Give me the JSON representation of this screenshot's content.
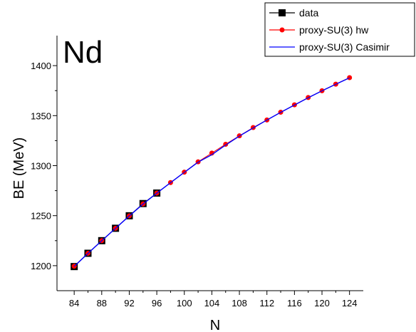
{
  "chart_data": {
    "type": "line",
    "annotation": "Nd",
    "title": "",
    "xlabel": "N",
    "ylabel": "BE (MeV)",
    "xlim": [
      81.5,
      126
    ],
    "ylim": [
      1175,
      1430
    ],
    "x_ticks": [
      84,
      88,
      92,
      96,
      100,
      104,
      108,
      112,
      116,
      120,
      124
    ],
    "x_minor_ticks": [
      86,
      90,
      94,
      98,
      102,
      106,
      110,
      114,
      118,
      122
    ],
    "y_ticks": [
      1200,
      1250,
      1300,
      1350,
      1400
    ],
    "y_minor_ticks": [
      1225,
      1275,
      1325,
      1375
    ],
    "grid": false,
    "legend_position": "top-right",
    "series": [
      {
        "name": "data",
        "style": "square-line",
        "color": "#000000",
        "x": [
          84,
          86,
          88,
          90,
          92,
          94,
          96
        ],
        "y": [
          1199.1,
          1212.4,
          1225.0,
          1237.4,
          1249.9,
          1262.1,
          1272.6
        ]
      },
      {
        "name": "proxy-SU(3) hw",
        "style": "circle-line",
        "color": "#ff0000",
        "x": [
          84,
          86,
          88,
          90,
          92,
          94,
          96,
          98,
          100,
          102,
          104,
          106,
          108,
          110,
          112,
          114,
          116,
          118,
          120,
          122,
          124
        ],
        "y": [
          1199.5,
          1212.4,
          1225.0,
          1237.4,
          1249.8,
          1261.7,
          1272.6,
          1283.1,
          1293.5,
          1303.8,
          1312.6,
          1321.4,
          1329.8,
          1338.1,
          1345.7,
          1353.4,
          1360.8,
          1368.1,
          1374.9,
          1381.5,
          1388.0
        ]
      },
      {
        "name": "proxy-SU(3) Casimir",
        "style": "line",
        "color": "#0000ff",
        "x": [
          84,
          86,
          88,
          90,
          92,
          94,
          96,
          98,
          100,
          102,
          104,
          106,
          108,
          110,
          112,
          114,
          116,
          118,
          120,
          122,
          124
        ],
        "y": [
          1199.3,
          1212.3,
          1224.9,
          1237.3,
          1249.7,
          1261.6,
          1272.5,
          1283.0,
          1293.3,
          1303.5,
          1311.0,
          1320.6,
          1329.6,
          1337.7,
          1345.6,
          1353.3,
          1360.6,
          1367.9,
          1374.8,
          1381.4,
          1387.8
        ]
      }
    ]
  }
}
